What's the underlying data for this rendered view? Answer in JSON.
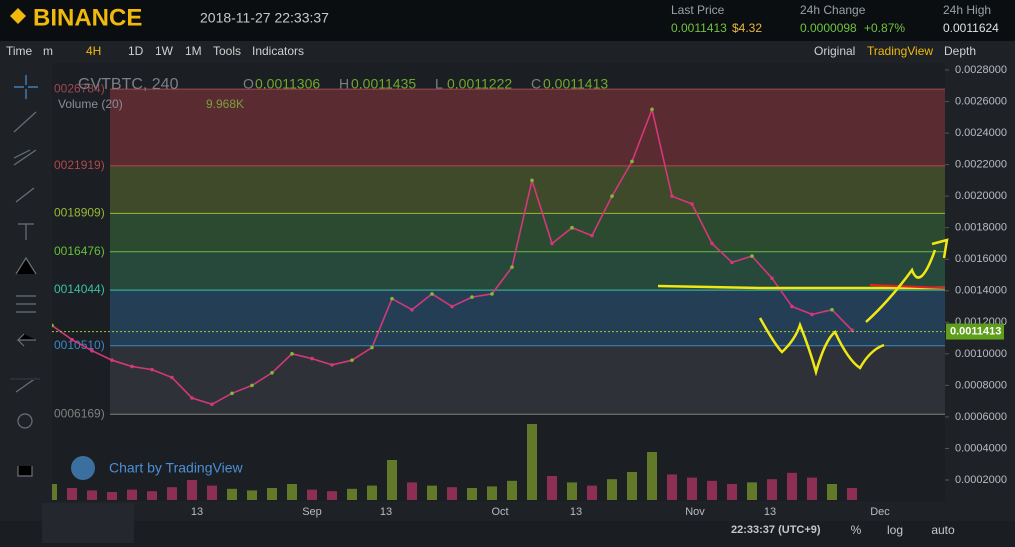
{
  "header": {
    "logo": "BINANCE",
    "datetime": "2018-11-27 22:33:37",
    "last_price_label": "Last Price",
    "last_price": "0.0011413",
    "last_price_usd": "$4.32",
    "change_label": "24h Change",
    "change": "0.0000098",
    "change_pct": "+0.87%",
    "high_label": "24h High",
    "high": "0.0011624"
  },
  "toolbar": {
    "left": [
      "Time",
      "m",
      "4H",
      "1D",
      "1W",
      "1M",
      "Tools",
      "Indicators"
    ],
    "right": [
      "Original",
      "TradingView",
      "Depth"
    ]
  },
  "legend": {
    "symbol": "GVTBTC, 240",
    "ohlc": [
      [
        "O",
        "0.0011306"
      ],
      [
        "H",
        "0.0011435"
      ],
      [
        "L",
        "0.0011222"
      ],
      [
        "C",
        "0.0011413"
      ]
    ],
    "volume_label": "Volume (20)",
    "volume_value": "9.968K"
  },
  "watermark": "Chart by TradingView",
  "chart": {
    "ylim": [
      0.0002,
      0.0028
    ],
    "yticks": [
      {
        "value": 0.0028,
        "label": "0.0028000"
      },
      {
        "value": 0.0026,
        "label": "0.0026000"
      },
      {
        "value": 0.0024,
        "label": "0.0024000"
      },
      {
        "value": 0.0022,
        "label": "0.0022000"
      },
      {
        "value": 0.002,
        "label": "0.0020000"
      },
      {
        "value": 0.0018,
        "label": "0.0018000"
      },
      {
        "value": 0.0016,
        "label": "0.0016000"
      },
      {
        "value": 0.0014,
        "label": "0.0014000"
      },
      {
        "value": 0.0012,
        "label": "0.0012000"
      },
      {
        "value": 0.001,
        "label": "0.0010000"
      },
      {
        "value": 0.0008,
        "label": "0.0008000"
      },
      {
        "value": 0.0006,
        "label": "0.0006000"
      },
      {
        "value": 0.0004,
        "label": "0.0004000"
      },
      {
        "value": 0.0002,
        "label": "0.0002000"
      }
    ],
    "current": {
      "value": 0.0011413,
      "label": "0.0011413"
    },
    "fib": [
      {
        "value": 0.0026784,
        "label": "0026784)",
        "color": "#5a2c31"
      },
      {
        "value": 0.0021919,
        "label": "0021919)",
        "color": "#3f4a2b"
      },
      {
        "value": 0.0018909,
        "label": "0018909)",
        "color": "#2c4a30"
      },
      {
        "value": 0.0016476,
        "label": "0016476)",
        "color": "#26493c"
      },
      {
        "value": 0.0014044,
        "label": "0014044)",
        "color": "#243f55"
      },
      {
        "value": 0.001051,
        "label": "0010510)",
        "color": "#2e3137"
      },
      {
        "value": 0.0006169,
        "label": "0006169)",
        "color": null
      }
    ],
    "xlabels": [
      "13",
      "Sep",
      "13",
      "Oct",
      "13",
      "Nov",
      "13",
      "Dec"
    ],
    "price": [
      0.00118,
      0.00109,
      0.00102,
      0.00096,
      0.00092,
      0.0009,
      0.00085,
      0.00072,
      0.00068,
      0.00075,
      0.0008,
      0.00088,
      0.001,
      0.00097,
      0.00093,
      0.00096,
      0.00104,
      0.00135,
      0.00128,
      0.00138,
      0.0013,
      0.00136,
      0.00138,
      0.00155,
      0.0021,
      0.0017,
      0.0018,
      0.00175,
      0.002,
      0.00222,
      0.00255,
      0.002,
      0.00195,
      0.0017,
      0.00158,
      0.00162,
      0.00148,
      0.0013,
      0.00125,
      0.00128,
      0.00115
    ],
    "volume": [
      2,
      1.5,
      1.2,
      1,
      1.3,
      1.1,
      1.6,
      2.5,
      1.8,
      1.4,
      1.2,
      1.5,
      2,
      1.3,
      1.1,
      1.4,
      1.8,
      5,
      2.2,
      1.8,
      1.6,
      1.5,
      1.7,
      2.4,
      9.5,
      3,
      2.2,
      1.8,
      2.6,
      3.5,
      6,
      3.2,
      2.8,
      2.4,
      2,
      2.2,
      2.6,
      3.4,
      2.8,
      2,
      1.5
    ]
  },
  "footer": {
    "time": "22:33:37 (UTC+9)",
    "buttons": [
      "%",
      "log",
      "auto"
    ]
  }
}
